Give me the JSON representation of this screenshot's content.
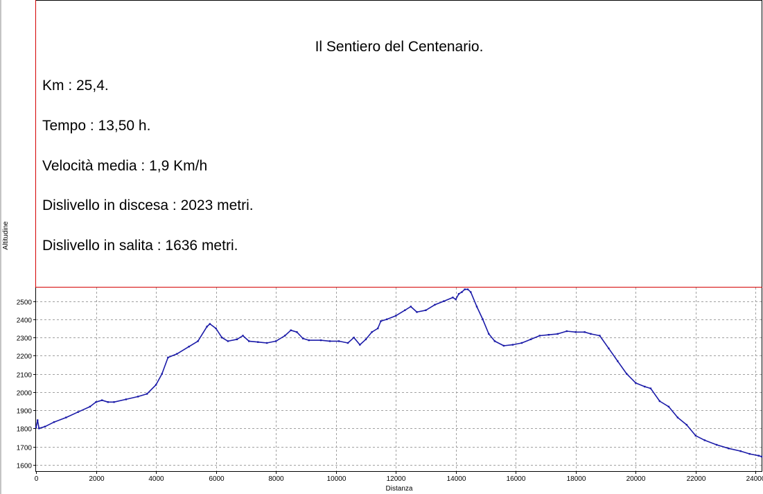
{
  "info": {
    "title": "Il Sentiero del Centenario.",
    "lines": [
      "Km : 25,4.",
      "Tempo : 13,50 h.",
      "Velocità media : 1,9 Km/h",
      "Dislivello in discesa : 2023 metri.",
      "Dislivello in salita : 1636 metri."
    ]
  },
  "colors": {
    "line": "#1a1aa8",
    "frame": "#d40000",
    "grid": "#a0a0a0"
  },
  "chart_data": {
    "type": "line",
    "title": "",
    "xlabel": "Distanza",
    "ylabel": "Altitudine",
    "xlim": [
      0,
      24200
    ],
    "ylim": [
      1565,
      2575
    ],
    "xticks": [
      0,
      2000,
      4000,
      6000,
      8000,
      10000,
      12000,
      14000,
      16000,
      18000,
      20000,
      22000,
      24000
    ],
    "yticks": [
      1600,
      1700,
      1800,
      1900,
      2000,
      2100,
      2200,
      2300,
      2400,
      2500
    ],
    "grid": true,
    "series": [
      {
        "x": [
          0,
          50,
          100,
          300,
          600,
          1000,
          1400,
          1800,
          2000,
          2200,
          2400,
          2600,
          3000,
          3400,
          3700,
          4000,
          4200,
          4400,
          4700,
          5100,
          5400,
          5700,
          5800,
          6000,
          6200,
          6400,
          6700,
          6900,
          7100,
          7400,
          7700,
          8000,
          8300,
          8500,
          8700,
          8900,
          9100,
          9500,
          9800,
          10100,
          10400,
          10600,
          10800,
          11000,
          11200,
          11400,
          11500,
          11700,
          12000,
          12300,
          12500,
          12700,
          13000,
          13300,
          13600,
          13900,
          14000,
          14100,
          14200,
          14300,
          14400,
          14500,
          14700,
          14900,
          15100,
          15300,
          15600,
          15900,
          16200,
          16500,
          16800,
          17100,
          17400,
          17700,
          18000,
          18300,
          18500,
          18800,
          19100,
          19400,
          19700,
          20000,
          20300,
          20500,
          20800,
          21100,
          21400,
          21700,
          22000,
          22300,
          22700,
          23100,
          23500,
          23800,
          24100,
          24200
        ],
        "y": [
          1805,
          1845,
          1800,
          1810,
          1835,
          1860,
          1890,
          1920,
          1945,
          1955,
          1945,
          1945,
          1960,
          1975,
          1990,
          2040,
          2100,
          2190,
          2210,
          2250,
          2280,
          2360,
          2375,
          2350,
          2300,
          2280,
          2290,
          2310,
          2280,
          2275,
          2270,
          2280,
          2310,
          2340,
          2330,
          2295,
          2285,
          2285,
          2280,
          2280,
          2270,
          2300,
          2260,
          2290,
          2330,
          2350,
          2390,
          2400,
          2420,
          2450,
          2470,
          2440,
          2450,
          2480,
          2500,
          2520,
          2510,
          2540,
          2550,
          2565,
          2565,
          2550,
          2470,
          2400,
          2320,
          2280,
          2255,
          2260,
          2270,
          2290,
          2310,
          2315,
          2320,
          2335,
          2330,
          2330,
          2320,
          2310,
          2240,
          2170,
          2100,
          2050,
          2030,
          2020,
          1950,
          1920,
          1860,
          1820,
          1760,
          1735,
          1710,
          1690,
          1675,
          1660,
          1650,
          1645
        ]
      }
    ]
  }
}
